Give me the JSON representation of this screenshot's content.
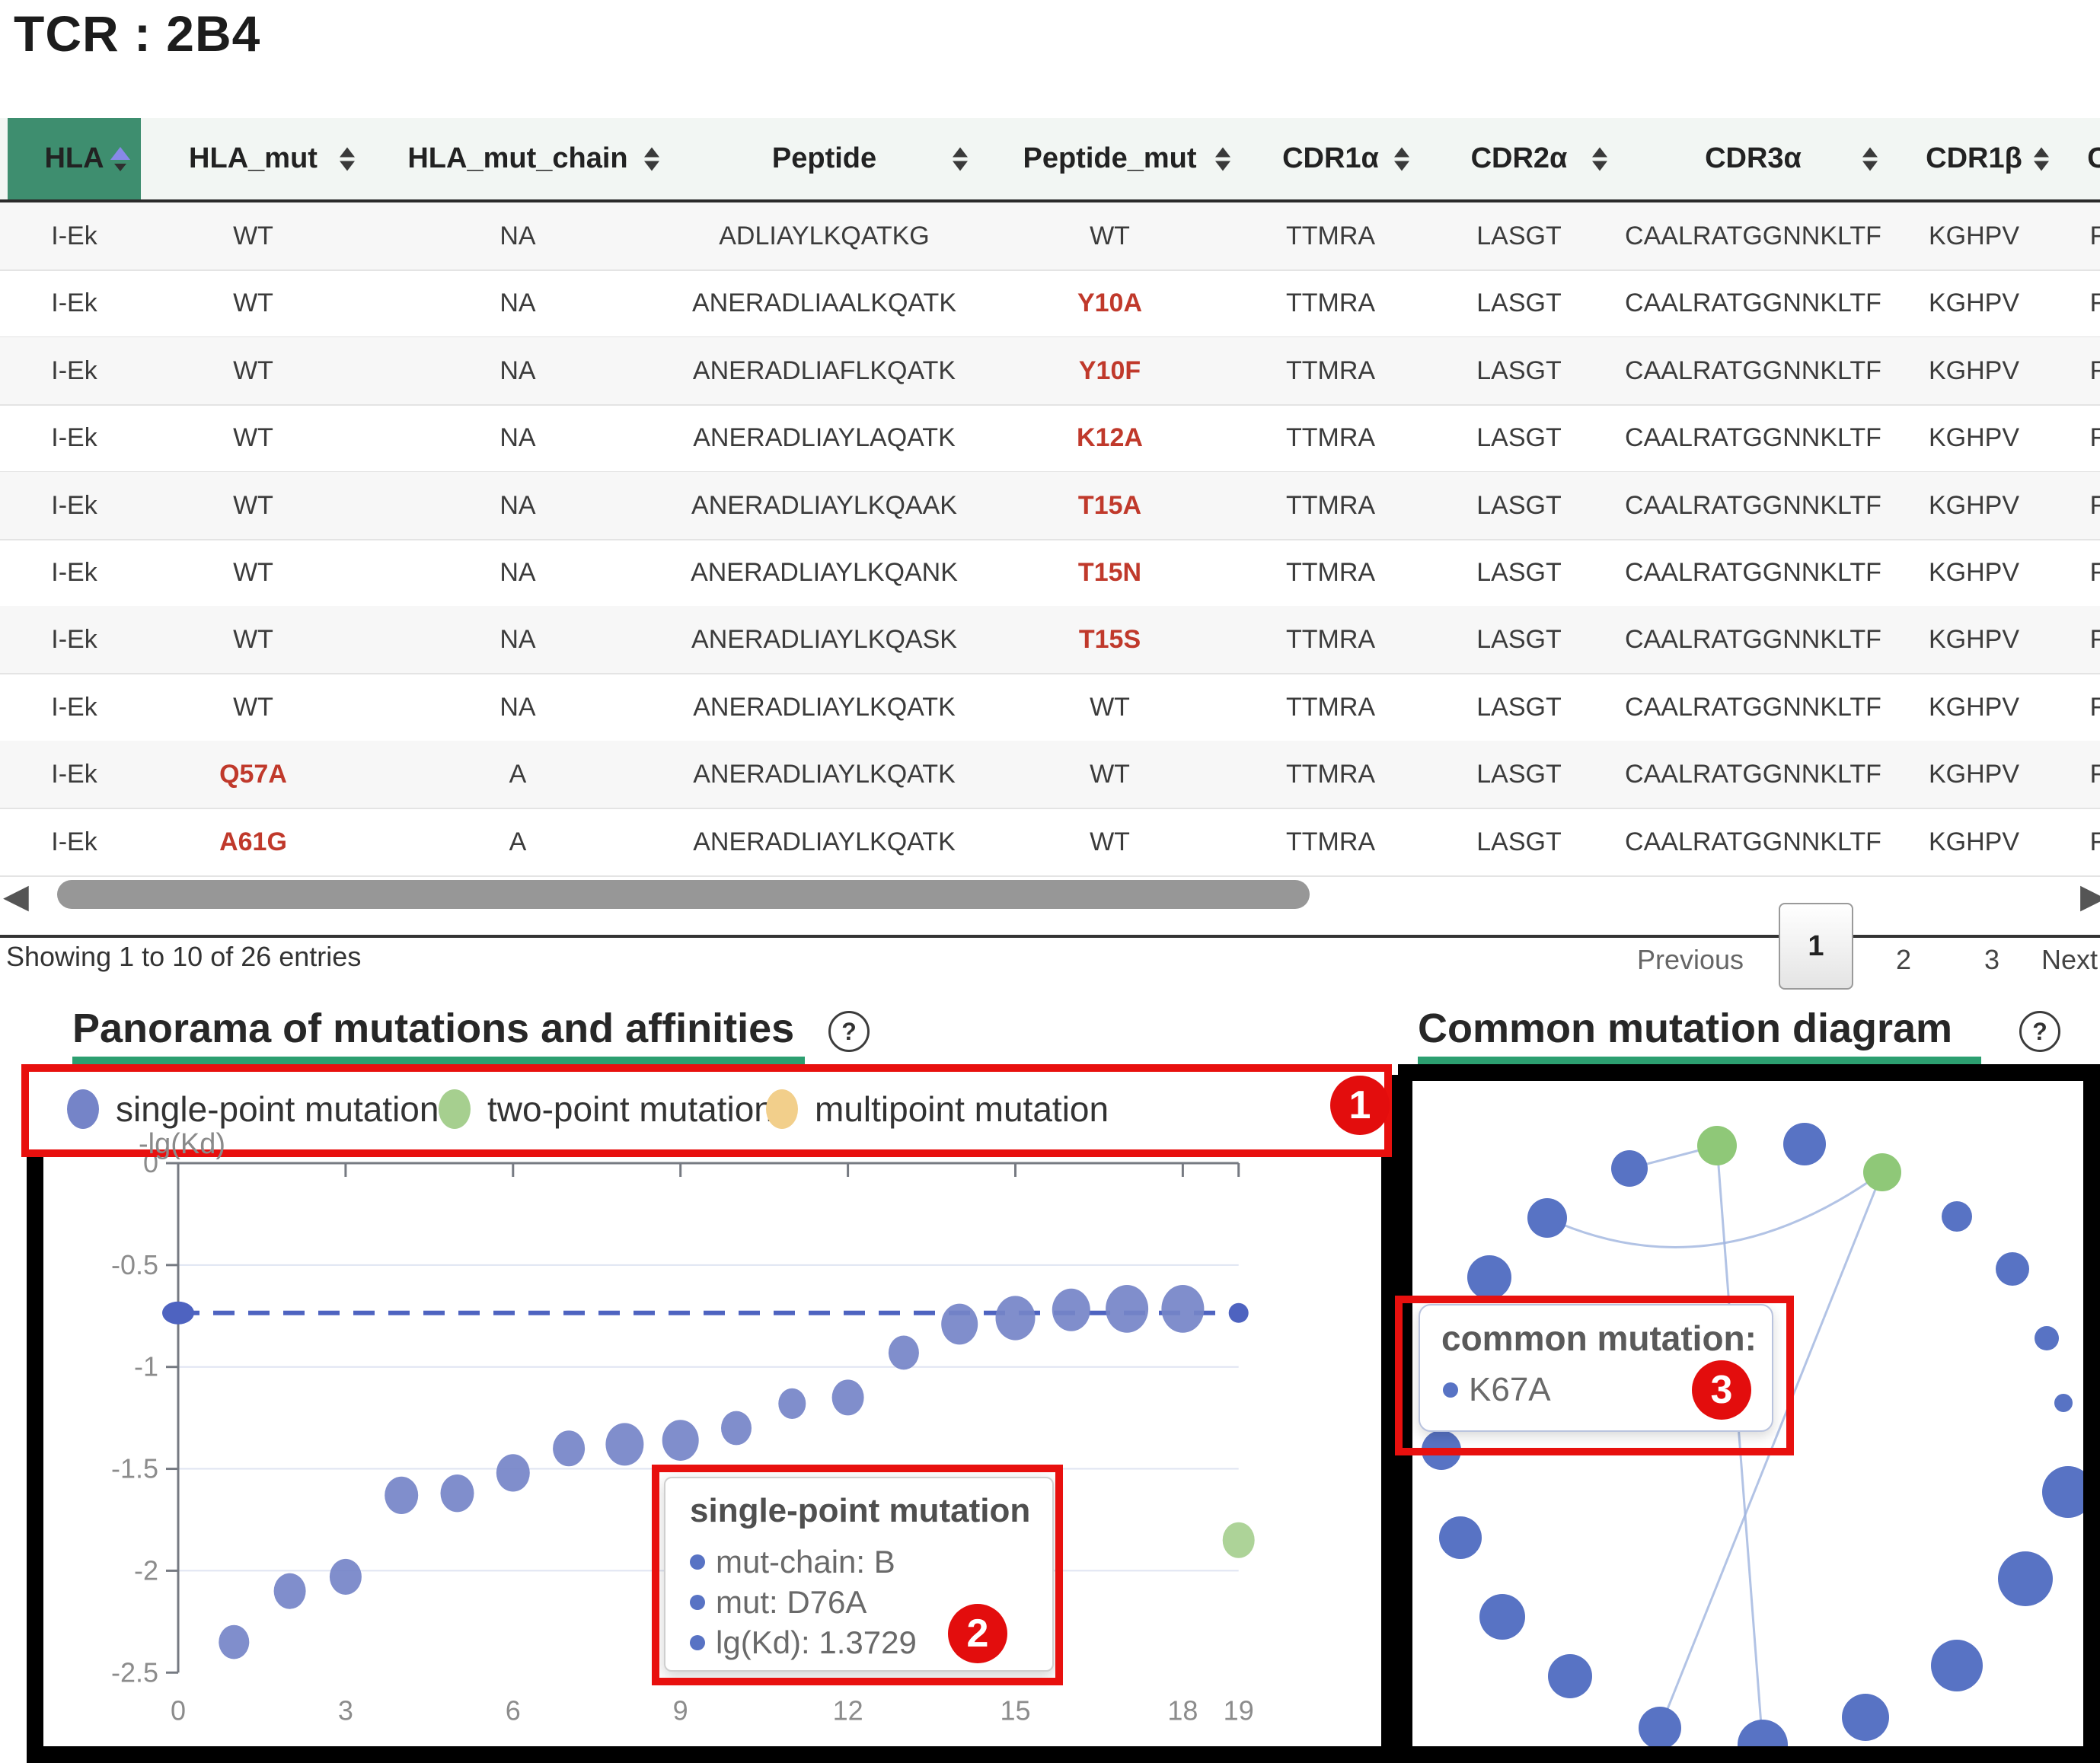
{
  "page": {
    "title": "TCR : 2B4"
  },
  "colors": {
    "header_active_green": "#3E8E6F",
    "header_bg": "#F2F6F3",
    "mutation_red": "#C0392B",
    "section_underline_green": "#2C9F70",
    "annotation_red": "#E8100E",
    "scatter_blue": "#7584C8",
    "scatter_green": "#A6CF8F",
    "legend_yellow": "#F2CF8B",
    "node_blue": "#5873C4",
    "node_green": "#8FC878",
    "dashed_line_blue": "#4E63C0"
  },
  "icons": {
    "scroll_left": "◀",
    "scroll_right": "▶",
    "help": "?"
  },
  "table": {
    "columns": [
      {
        "label": "HLA",
        "sort": "asc",
        "active": true
      },
      {
        "label": "HLA_mut",
        "sort": "both"
      },
      {
        "label": "HLA_mut_chain",
        "sort": "both"
      },
      {
        "label": "Peptide",
        "sort": "both"
      },
      {
        "label": "Peptide_mut",
        "sort": "both"
      },
      {
        "label": "CDR1α",
        "sort": "both"
      },
      {
        "label": "CDR2α",
        "sort": "both"
      },
      {
        "label": "CDR3α",
        "sort": "both"
      },
      {
        "label": "CDR1β",
        "sort": "both"
      },
      {
        "label": "C",
        "sort": "none",
        "clipped": true
      }
    ],
    "rows": [
      [
        "I-Ek",
        "WT",
        "NA",
        "ADLIAYLKQATKG",
        "WT",
        "TTMRA",
        "LASGT",
        "CAALRATGGNNKLTF",
        "KGHPV",
        "F"
      ],
      [
        "I-Ek",
        "WT",
        "NA",
        "ANERADLIAALKQATK",
        {
          "t": "Y10A",
          "red": true
        },
        "TTMRA",
        "LASGT",
        "CAALRATGGNNKLTF",
        "KGHPV",
        "F"
      ],
      [
        "I-Ek",
        "WT",
        "NA",
        "ANERADLIAFLKQATK",
        {
          "t": "Y10F",
          "red": true
        },
        "TTMRA",
        "LASGT",
        "CAALRATGGNNKLTF",
        "KGHPV",
        "F"
      ],
      [
        "I-Ek",
        "WT",
        "NA",
        "ANERADLIAYLAQATK",
        {
          "t": "K12A",
          "red": true
        },
        "TTMRA",
        "LASGT",
        "CAALRATGGNNKLTF",
        "KGHPV",
        "F"
      ],
      [
        "I-Ek",
        "WT",
        "NA",
        "ANERADLIAYLKQAAK",
        {
          "t": "T15A",
          "red": true
        },
        "TTMRA",
        "LASGT",
        "CAALRATGGNNKLTF",
        "KGHPV",
        "F"
      ],
      [
        "I-Ek",
        "WT",
        "NA",
        "ANERADLIAYLKQANK",
        {
          "t": "T15N",
          "red": true
        },
        "TTMRA",
        "LASGT",
        "CAALRATGGNNKLTF",
        "KGHPV",
        "F"
      ],
      [
        "I-Ek",
        "WT",
        "NA",
        "ANERADLIAYLKQASK",
        {
          "t": "T15S",
          "red": true
        },
        "TTMRA",
        "LASGT",
        "CAALRATGGNNKLTF",
        "KGHPV",
        "F"
      ],
      [
        "I-Ek",
        "WT",
        "NA",
        "ANERADLIAYLKQATK",
        "WT",
        "TTMRA",
        "LASGT",
        "CAALRATGGNNKLTF",
        "KGHPV",
        "F"
      ],
      [
        "I-Ek",
        {
          "t": "Q57A",
          "red": true
        },
        "A",
        "ANERADLIAYLKQATK",
        "WT",
        "TTMRA",
        "LASGT",
        "CAALRATGGNNKLTF",
        "KGHPV",
        "F"
      ],
      [
        "I-Ek",
        {
          "t": "A61G",
          "red": true
        },
        "A",
        "ANERADLIAYLKQATK",
        "WT",
        "TTMRA",
        "LASGT",
        "CAALRATGGNNKLTF",
        "KGHPV",
        "F"
      ]
    ],
    "summary": "Showing 1 to 10 of 26 entries",
    "pagination": {
      "previous": "Previous",
      "pages": [
        "1",
        "2",
        "3"
      ],
      "current": "1",
      "next": "Next"
    }
  },
  "annotations": [
    "1",
    "2",
    "3"
  ],
  "panorama": {
    "title": "Panorama of mutations and affinities",
    "help": "?",
    "y_label": "-lg(Kd)",
    "legend": [
      {
        "label": "single-point mutation",
        "color": "#7584C8"
      },
      {
        "label": "two-point mutation",
        "color": "#A6CF8F"
      },
      {
        "label": "multipoint mutation",
        "color": "#F2CF8B"
      }
    ],
    "tooltip": {
      "title": "single-point mutation",
      "lines": [
        "mut-chain: B",
        "mut: D76A",
        "lg(Kd): 1.3729"
      ]
    },
    "chart_data": {
      "type": "scatter",
      "title": "Panorama of mutations and affinities",
      "ylabel": "-lg(Kd)",
      "ylim": [
        -2.5,
        0
      ],
      "y_ticks": [
        0,
        -0.5,
        -1,
        -1.5,
        -2,
        -2.5
      ],
      "x_ticks": [
        0,
        3,
        6,
        9,
        12,
        15,
        18,
        19
      ],
      "baseline": {
        "y": -0.735,
        "style": "dashed"
      },
      "series": [
        {
          "name": "single-point mutation",
          "color": "#7584C8",
          "points": [
            [
              1,
              -2.35,
              20
            ],
            [
              2,
              -2.1,
              21
            ],
            [
              3,
              -2.03,
              21
            ],
            [
              4,
              -1.63,
              22
            ],
            [
              5,
              -1.62,
              22
            ],
            [
              6,
              -1.52,
              22
            ],
            [
              7,
              -1.4,
              21
            ],
            [
              8,
              -1.38,
              25
            ],
            [
              9,
              -1.36,
              24
            ],
            [
              10,
              -1.3,
              20
            ],
            [
              11,
              -1.18,
              18
            ],
            [
              12,
              -1.15,
              21
            ],
            [
              13,
              -0.93,
              20
            ],
            [
              14,
              -0.79,
              24
            ],
            [
              15,
              -0.76,
              26
            ],
            [
              16,
              -0.72,
              25
            ],
            [
              17,
              -0.715,
              28
            ],
            [
              18,
              -0.715,
              28
            ]
          ]
        },
        {
          "name": "two-point mutation",
          "color": "#A6CF8F",
          "points": [
            [
              19,
              -1.85,
              21
            ]
          ]
        },
        {
          "name": "multipoint mutation",
          "color": "#F2CF8B",
          "points": []
        }
      ]
    }
  },
  "common": {
    "title": "Common mutation diagram",
    "help": "?",
    "tooltip": {
      "title": "common mutation:",
      "item": "K67A"
    },
    "chart_data": {
      "type": "network",
      "nodes": [
        [
          400,
          85,
          26,
          "green"
        ],
        [
          515,
          83,
          28,
          "blue"
        ],
        [
          617,
          120,
          25,
          "green"
        ],
        [
          285,
          115,
          24,
          "blue"
        ],
        [
          177,
          180,
          26,
          "blue"
        ],
        [
          101,
          258,
          29,
          "blue"
        ],
        [
          715,
          178,
          20,
          "blue"
        ],
        [
          788,
          247,
          22,
          "blue"
        ],
        [
          833,
          338,
          16,
          "blue"
        ],
        [
          855,
          423,
          12,
          "blue"
        ],
        [
          861,
          540,
          34,
          "blue"
        ],
        [
          805,
          654,
          36,
          "blue"
        ],
        [
          715,
          768,
          34,
          "blue"
        ],
        [
          595,
          836,
          31,
          "blue"
        ],
        [
          460,
          872,
          33,
          "blue"
        ],
        [
          325,
          850,
          28,
          "blue"
        ],
        [
          207,
          782,
          29,
          "blue"
        ],
        [
          118,
          704,
          30,
          "blue"
        ],
        [
          63,
          600,
          28,
          "blue"
        ],
        [
          38,
          485,
          26,
          "blue"
        ]
      ],
      "edges": [
        {
          "from": 4,
          "to": 2,
          "shape": "curve",
          "ctrl": [
            395,
            280
          ]
        },
        {
          "from": 0,
          "to": 3,
          "shape": "line"
        },
        {
          "from": 0,
          "to": 14,
          "shape": "line"
        },
        {
          "from": 2,
          "to": 15,
          "shape": "line"
        }
      ]
    }
  }
}
